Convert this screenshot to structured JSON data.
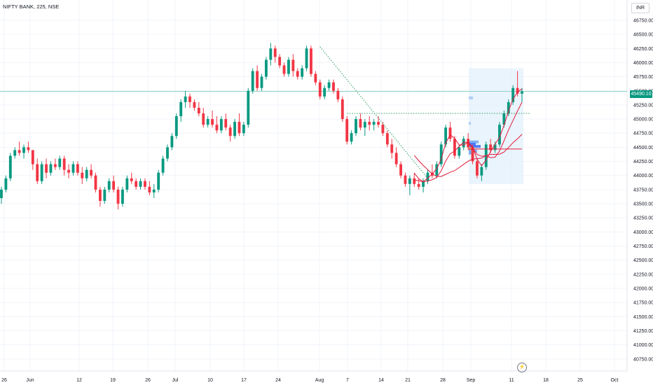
{
  "header": {
    "symbol_title": "NIFTY BANK, 225, NSE",
    "currency": "INR"
  },
  "last_price_label": "45490.10",
  "colors": {
    "up": "#089981",
    "down": "#f23645",
    "ma": "#e31b3b",
    "trend": "#2e9e5e",
    "grid": "#f0f3fa"
  },
  "icons": [
    "lightning-icon"
  ],
  "chart_data": {
    "type": "candlestick",
    "title": "NIFTY BANK, 225, NSE",
    "ylim": [
      40500,
      47000
    ],
    "yticks": [
      40750,
      41000,
      41250,
      41500,
      41750,
      42000,
      42250,
      42500,
      42750,
      43000,
      43250,
      43500,
      43750,
      44000,
      44250,
      44500,
      44750,
      45000,
      45250,
      45500,
      45750,
      46000,
      46250,
      46500,
      46750
    ],
    "ytick_labels": [
      "40750.00",
      "41000.00",
      "41250.00",
      "41500.00",
      "41750.00",
      "42000.00",
      "42250.00",
      "42500.00",
      "42750.00",
      "43000.00",
      "43250.00",
      "43500.00",
      "43750.00",
      "44000.00",
      "44250.00",
      "44500.00",
      "44750.00",
      "45000.00",
      "45250.00",
      "45500.00",
      "45750.00",
      "46000.00",
      "46250.00",
      "46500.00",
      "46750.00"
    ],
    "xtick_labels": [
      "26",
      "Jun",
      "12",
      "19",
      "26",
      "Jul",
      "10",
      "17",
      "24",
      "Aug",
      "7",
      "14",
      "21",
      "28",
      "Sep",
      "11",
      "18",
      "25",
      "Oct"
    ],
    "last_price": 45490.1,
    "candles": [
      [
        43600,
        43800,
        43500,
        43750
      ],
      [
        43750,
        44000,
        43700,
        43950
      ],
      [
        43950,
        44400,
        43900,
        44350
      ],
      [
        44350,
        44500,
        44300,
        44450
      ],
      [
        44450,
        44600,
        44350,
        44400
      ],
      [
        44400,
        44550,
        44300,
        44500
      ],
      [
        44500,
        44600,
        44400,
        44450
      ],
      [
        44450,
        44450,
        44100,
        44200
      ],
      [
        44200,
        44300,
        43850,
        43900
      ],
      [
        43900,
        44250,
        43850,
        44200
      ],
      [
        44200,
        44300,
        43950,
        44050
      ],
      [
        44050,
        44250,
        44000,
        44200
      ],
      [
        44200,
        44300,
        44100,
        44150
      ],
      [
        44150,
        44350,
        44100,
        44300
      ],
      [
        44300,
        44350,
        44000,
        44100
      ],
      [
        44100,
        44200,
        43950,
        44050
      ],
      [
        44050,
        44250,
        44000,
        44200
      ],
      [
        44200,
        44250,
        44000,
        44050
      ],
      [
        44050,
        44150,
        43850,
        43950
      ],
      [
        43950,
        44150,
        43900,
        44100
      ],
      [
        44100,
        44200,
        43950,
        44000
      ],
      [
        44000,
        44050,
        43700,
        43750
      ],
      [
        43750,
        43800,
        43450,
        43550
      ],
      [
        43550,
        43800,
        43500,
        43750
      ],
      [
        43750,
        43950,
        43700,
        43900
      ],
      [
        43900,
        44000,
        43700,
        43750
      ],
      [
        43750,
        43800,
        43400,
        43500
      ],
      [
        43500,
        43800,
        43450,
        43750
      ],
      [
        43750,
        44000,
        43700,
        43950
      ],
      [
        43950,
        44050,
        43850,
        43900
      ],
      [
        43900,
        43950,
        43750,
        43800
      ],
      [
        43800,
        43950,
        43750,
        43900
      ],
      [
        43900,
        43950,
        43750,
        43800
      ],
      [
        43800,
        43900,
        43650,
        43700
      ],
      [
        43700,
        43850,
        43600,
        43750
      ],
      [
        43750,
        44100,
        43700,
        44050
      ],
      [
        44050,
        44350,
        44000,
        44300
      ],
      [
        44300,
        44550,
        44250,
        44500
      ],
      [
        44500,
        44750,
        44450,
        44700
      ],
      [
        44700,
        45100,
        44650,
        45050
      ],
      [
        45050,
        45350,
        44950,
        45300
      ],
      [
        45300,
        45500,
        45200,
        45400
      ],
      [
        45400,
        45450,
        45200,
        45300
      ],
      [
        45300,
        45350,
        45150,
        45200
      ],
      [
        45200,
        45300,
        45050,
        45100
      ],
      [
        45100,
        45200,
        44850,
        44900
      ],
      [
        44900,
        45050,
        44850,
        45000
      ],
      [
        45000,
        45150,
        44850,
        44900
      ],
      [
        44900,
        45050,
        44750,
        44800
      ],
      [
        44800,
        45050,
        44750,
        45000
      ],
      [
        45000,
        45100,
        44800,
        44850
      ],
      [
        44850,
        44900,
        44600,
        44700
      ],
      [
        44700,
        45000,
        44650,
        44950
      ],
      [
        44950,
        45100,
        44700,
        44750
      ],
      [
        44750,
        44950,
        44700,
        44900
      ],
      [
        44900,
        45550,
        44850,
        45500
      ],
      [
        45500,
        45900,
        45450,
        45850
      ],
      [
        45850,
        45950,
        45500,
        45550
      ],
      [
        45550,
        45800,
        45500,
        45750
      ],
      [
        45750,
        46100,
        45700,
        46050
      ],
      [
        46050,
        46350,
        45950,
        46250
      ],
      [
        46250,
        46300,
        46000,
        46100
      ],
      [
        46100,
        46150,
        45900,
        45950
      ],
      [
        45950,
        46000,
        45750,
        45800
      ],
      [
        45800,
        46100,
        45750,
        46050
      ],
      [
        46050,
        46150,
        45750,
        45850
      ],
      [
        45850,
        45900,
        45700,
        45750
      ],
      [
        45750,
        45950,
        45700,
        45900
      ],
      [
        45900,
        46300,
        45850,
        46250
      ],
      [
        46250,
        46300,
        45750,
        45800
      ],
      [
        45800,
        45850,
        45600,
        45650
      ],
      [
        45650,
        45700,
        45350,
        45400
      ],
      [
        45400,
        45600,
        45350,
        45550
      ],
      [
        45550,
        45700,
        45500,
        45650
      ],
      [
        45650,
        45700,
        45450,
        45500
      ],
      [
        45500,
        45550,
        45300,
        45350
      ],
      [
        45350,
        45400,
        44950,
        45000
      ],
      [
        45000,
        45050,
        44550,
        44600
      ],
      [
        44600,
        44800,
        44550,
        44750
      ],
      [
        44750,
        45050,
        44700,
        45000
      ],
      [
        45000,
        45100,
        44800,
        44850
      ],
      [
        44850,
        45000,
        44700,
        44950
      ],
      [
        44950,
        45050,
        44800,
        44900
      ],
      [
        44900,
        45000,
        44800,
        44950
      ],
      [
        44950,
        45050,
        44850,
        44900
      ],
      [
        44900,
        44950,
        44700,
        44750
      ],
      [
        44750,
        44800,
        44500,
        44550
      ],
      [
        44550,
        44650,
        44300,
        44400
      ],
      [
        44400,
        44500,
        44150,
        44200
      ],
      [
        44200,
        44250,
        43950,
        44000
      ],
      [
        44000,
        44050,
        43800,
        43850
      ],
      [
        43850,
        44000,
        43650,
        43950
      ],
      [
        43950,
        44050,
        43800,
        43850
      ],
      [
        43850,
        43950,
        43750,
        43800
      ],
      [
        43800,
        43950,
        43700,
        43900
      ],
      [
        43900,
        44100,
        43850,
        44050
      ],
      [
        44050,
        44200,
        43950,
        44000
      ],
      [
        44000,
        44250,
        43950,
        44200
      ],
      [
        44200,
        44600,
        44150,
        44550
      ],
      [
        44550,
        44900,
        44500,
        44850
      ],
      [
        44850,
        44950,
        44600,
        44650
      ],
      [
        44650,
        44700,
        44300,
        44350
      ],
      [
        44350,
        44550,
        44300,
        44500
      ],
      [
        44500,
        44700,
        44450,
        44650
      ],
      [
        44650,
        44750,
        44450,
        44500
      ],
      [
        44500,
        44550,
        44200,
        44250
      ],
      [
        44250,
        44300,
        43950,
        44000
      ],
      [
        44000,
        44200,
        43900,
        44150
      ],
      [
        44150,
        44600,
        44100,
        44550
      ],
      [
        44550,
        44650,
        44400,
        44450
      ],
      [
        44450,
        44600,
        44400,
        44550
      ],
      [
        44550,
        44950,
        44500,
        44900
      ],
      [
        44900,
        45150,
        44850,
        45100
      ],
      [
        45100,
        45350,
        45050,
        45300
      ],
      [
        45300,
        45600,
        45250,
        45550
      ],
      [
        45550,
        45850,
        45400,
        45450
      ],
      [
        45450,
        45550,
        45300,
        45490
      ]
    ]
  }
}
